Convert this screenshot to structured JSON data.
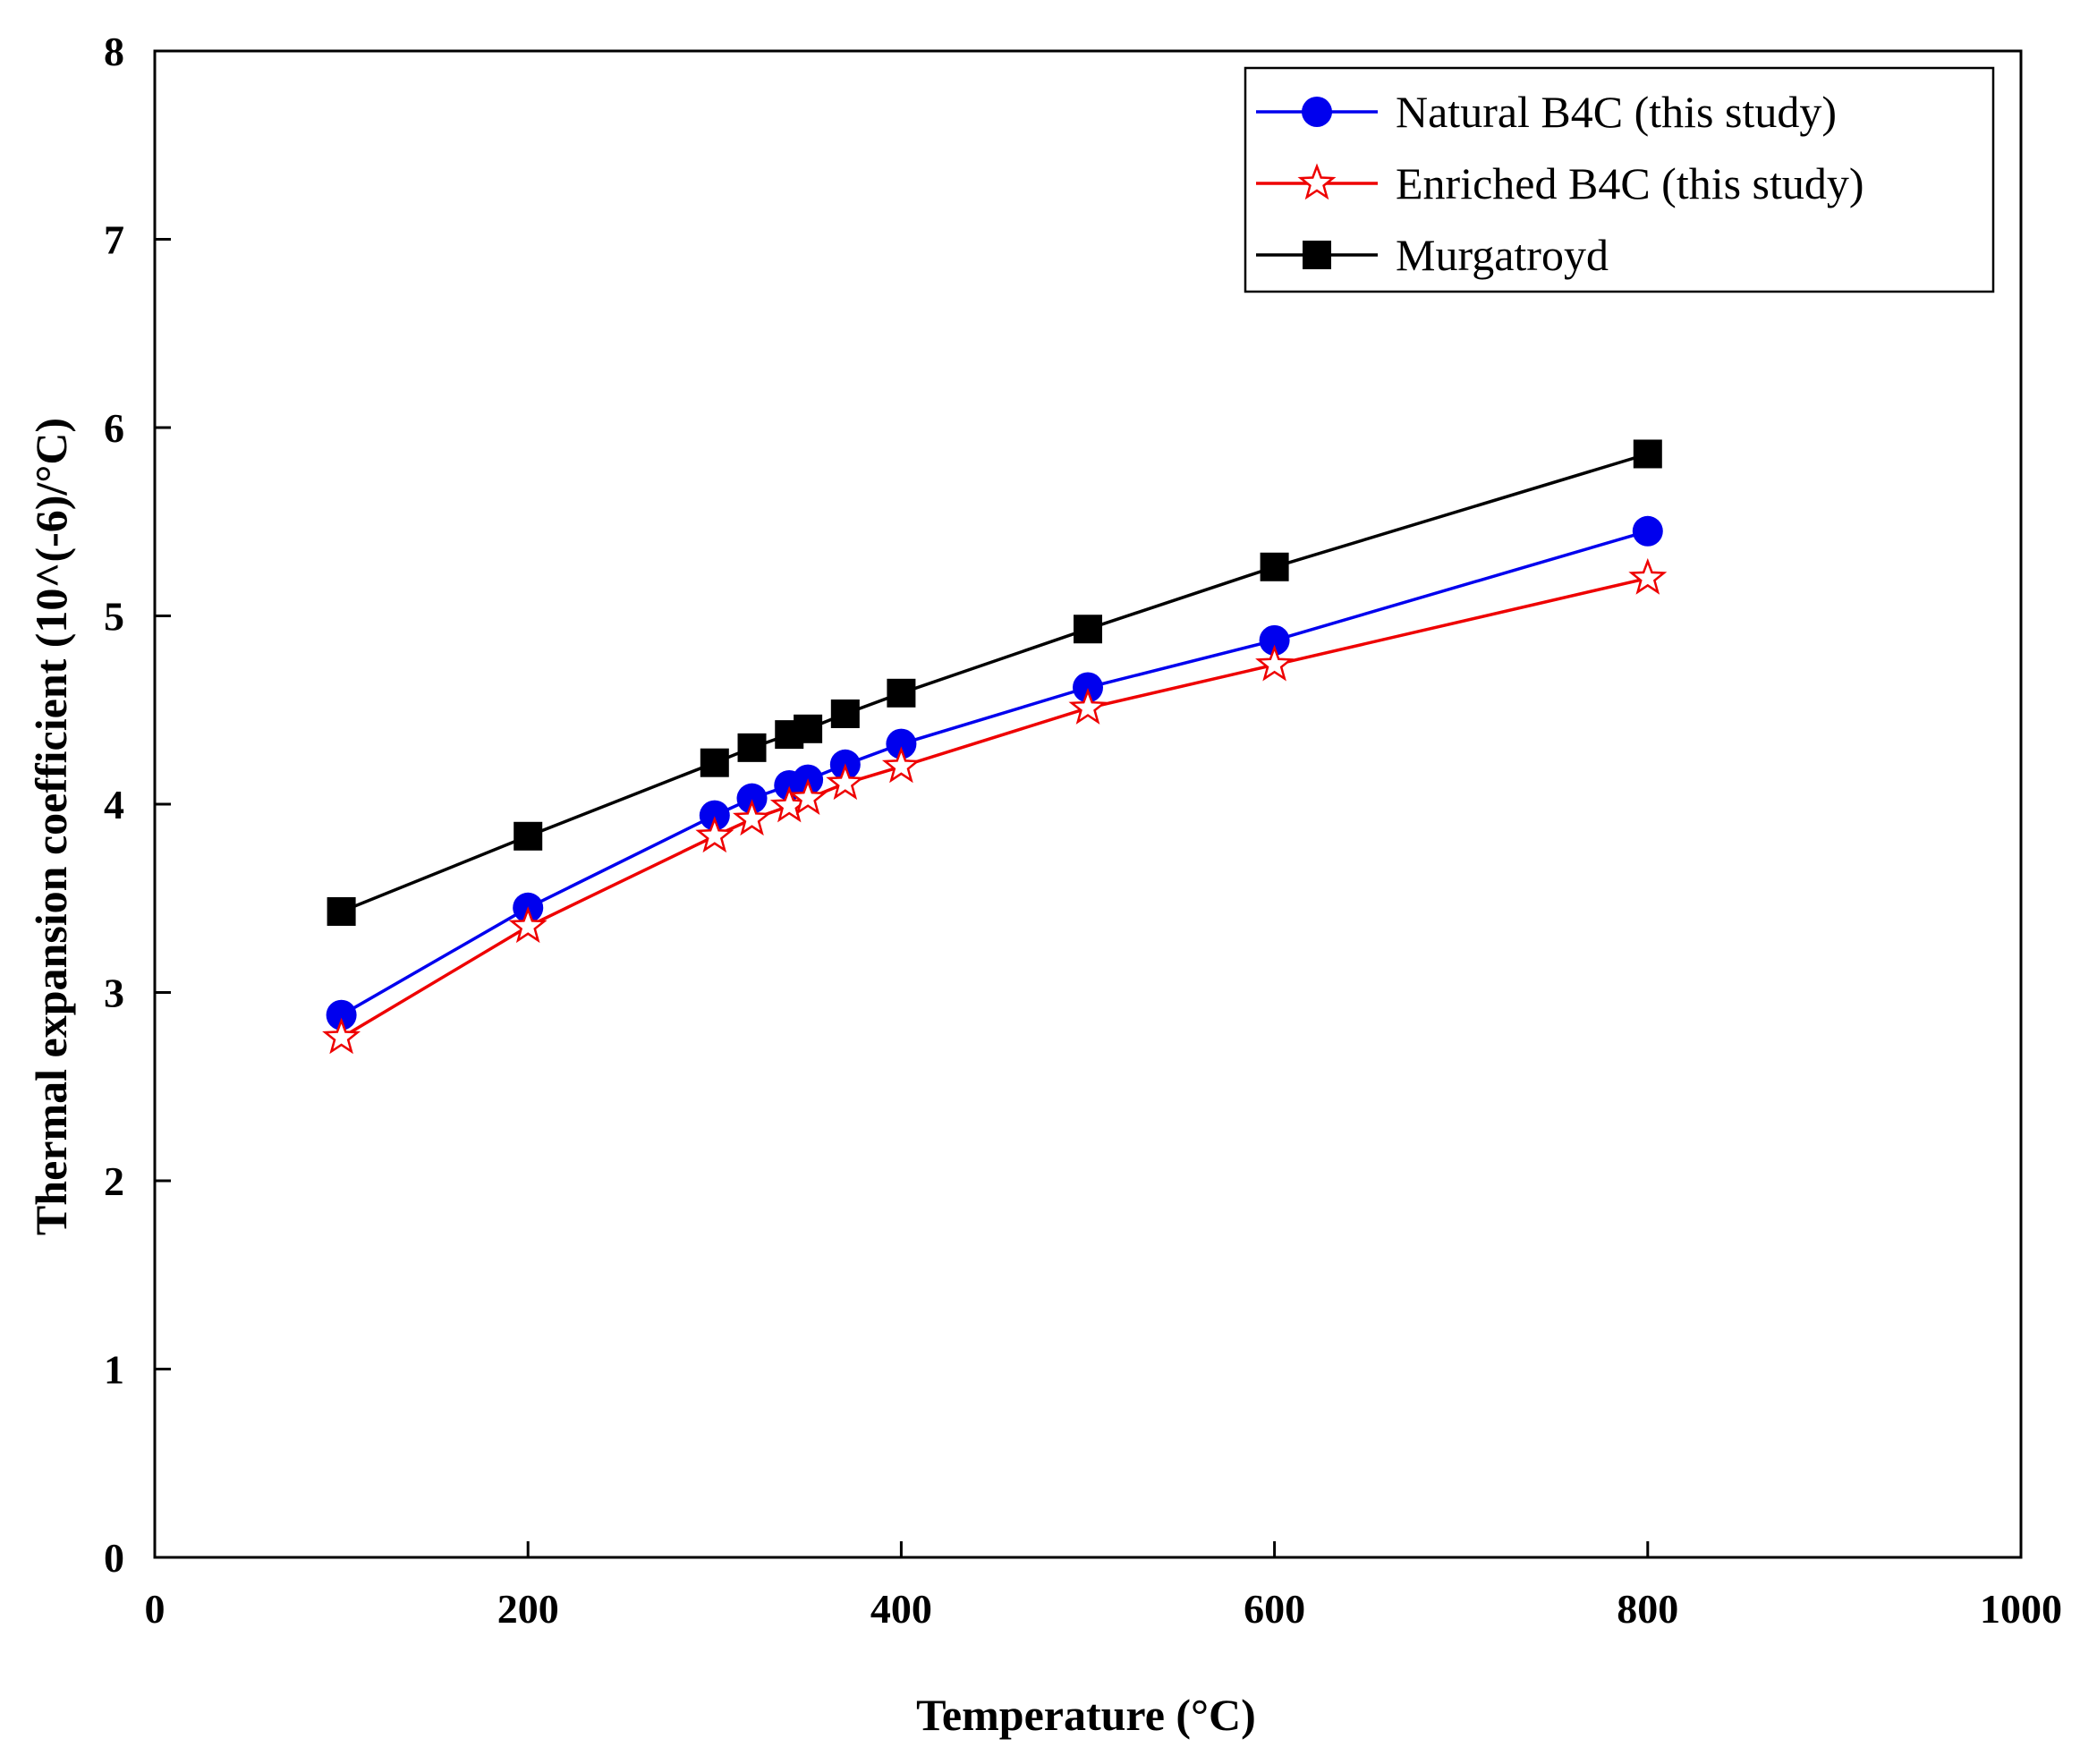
{
  "chart_data": {
    "type": "line",
    "title": "",
    "xlabel": "Temperature (°C)",
    "ylabel": "Thermal expansion coefficient (10^(-6)/°C)",
    "xlim": [
      0,
      1000
    ],
    "ylim": [
      0,
      8
    ],
    "xticks": [
      0,
      200,
      400,
      600,
      800,
      1000
    ],
    "yticks": [
      0,
      1,
      2,
      3,
      4,
      5,
      6,
      7,
      8
    ],
    "grid": false,
    "legend_position": "top-right",
    "series": [
      {
        "name": "Natural B4C (this study)",
        "color": "#0000ee",
        "marker": "circle",
        "x": [
          100,
          200,
          300,
          320,
          340,
          350,
          370,
          400,
          500,
          600,
          800
        ],
        "y": [
          2.88,
          3.45,
          3.94,
          4.03,
          4.1,
          4.13,
          4.21,
          4.32,
          4.62,
          4.87,
          5.45
        ]
      },
      {
        "name": "Enriched B4C (this study)",
        "color": "#ee0000",
        "marker": "star",
        "x": [
          100,
          200,
          300,
          320,
          340,
          350,
          370,
          400,
          500,
          600,
          800
        ],
        "y": [
          2.76,
          3.35,
          3.83,
          3.92,
          3.99,
          4.03,
          4.11,
          4.2,
          4.51,
          4.74,
          5.2
        ]
      },
      {
        "name": "Murgatroyd",
        "color": "#000000",
        "marker": "square",
        "x": [
          100,
          200,
          300,
          320,
          340,
          350,
          370,
          400,
          500,
          600,
          800
        ],
        "y": [
          3.43,
          3.83,
          4.22,
          4.3,
          4.37,
          4.4,
          4.48,
          4.59,
          4.93,
          5.26,
          5.86
        ]
      }
    ]
  }
}
